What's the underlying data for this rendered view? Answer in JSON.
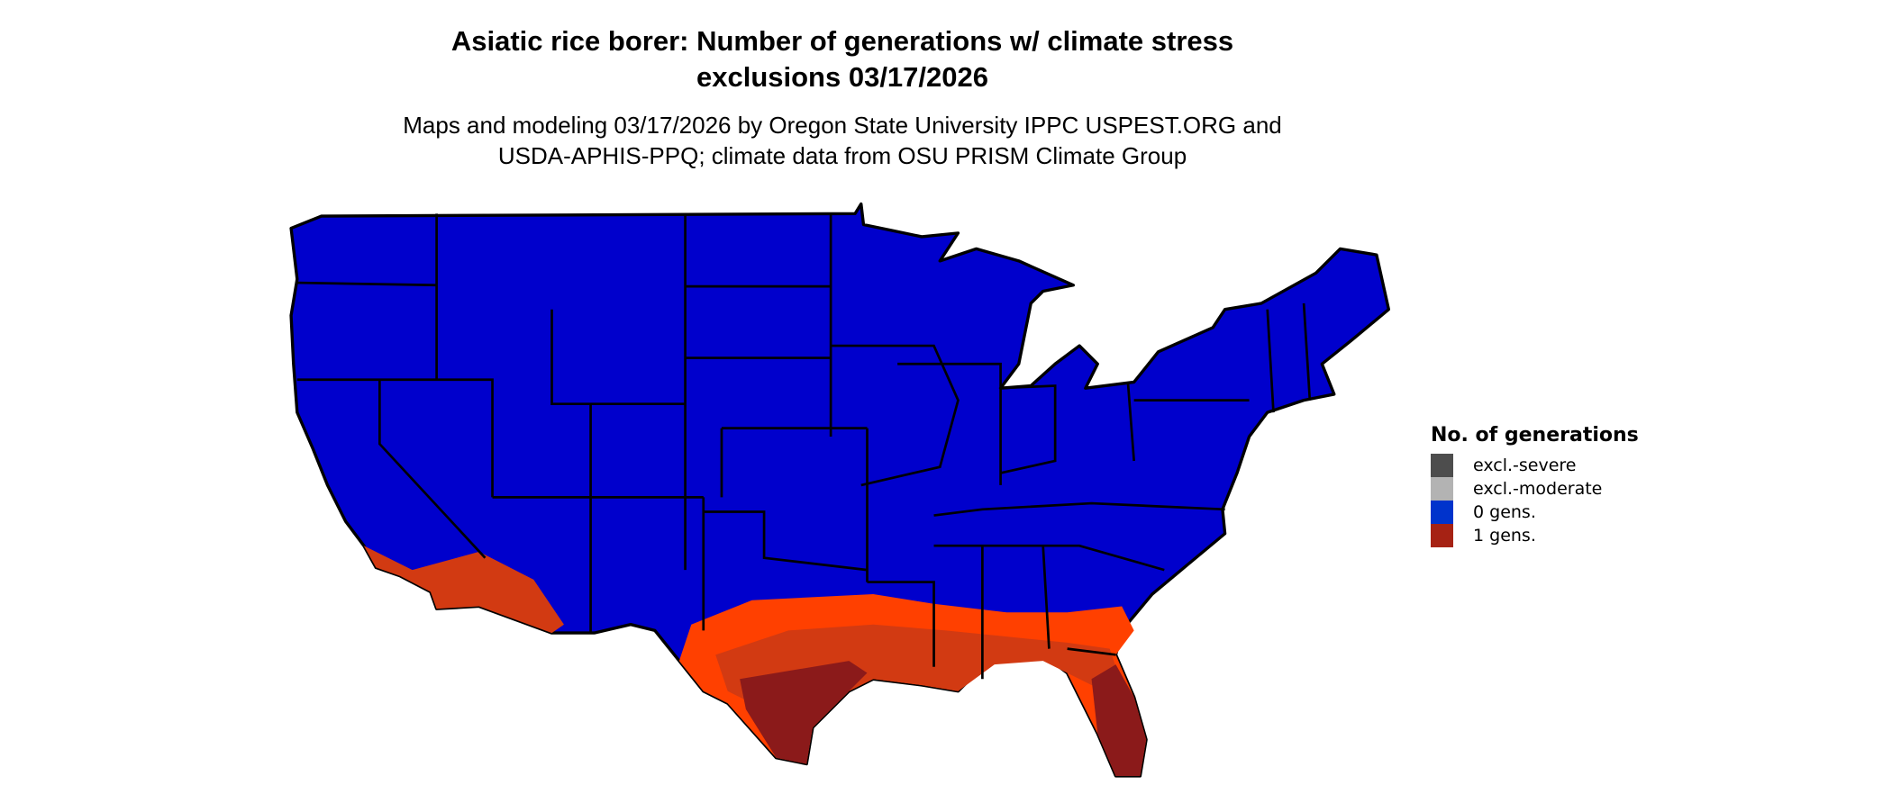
{
  "title_line1": "Asiatic rice borer: Number of generations w/ climate stress",
  "title_line2": "exclusions 03/17/2026",
  "subtitle_line1": "Maps and modeling 03/17/2026 by Oregon State University IPPC USPEST.ORG and",
  "subtitle_line2": "USDA-APHIS-PPQ; climate data from OSU PRISM Climate Group",
  "chart_data": {
    "type": "heatmap",
    "map_region": "Contiguous United States",
    "legend_title": "No. of generations",
    "legend_placement": "right",
    "legend": [
      {
        "label": "excl.-severe",
        "color": "#4d4d4d"
      },
      {
        "label": "excl.-moderate",
        "color": "#b3b3b3"
      },
      {
        "label": "0 gens.",
        "color": "#0033cc"
      },
      {
        "label": "1 gens.",
        "color": "#a62214"
      }
    ],
    "colors": {
      "zero_gens_fill": "#0000cc",
      "gen_low": "#ff4000",
      "gen_mid": "#d23a12",
      "gen_high": "#8b1a1a",
      "state_borders": "#000000"
    }
  }
}
